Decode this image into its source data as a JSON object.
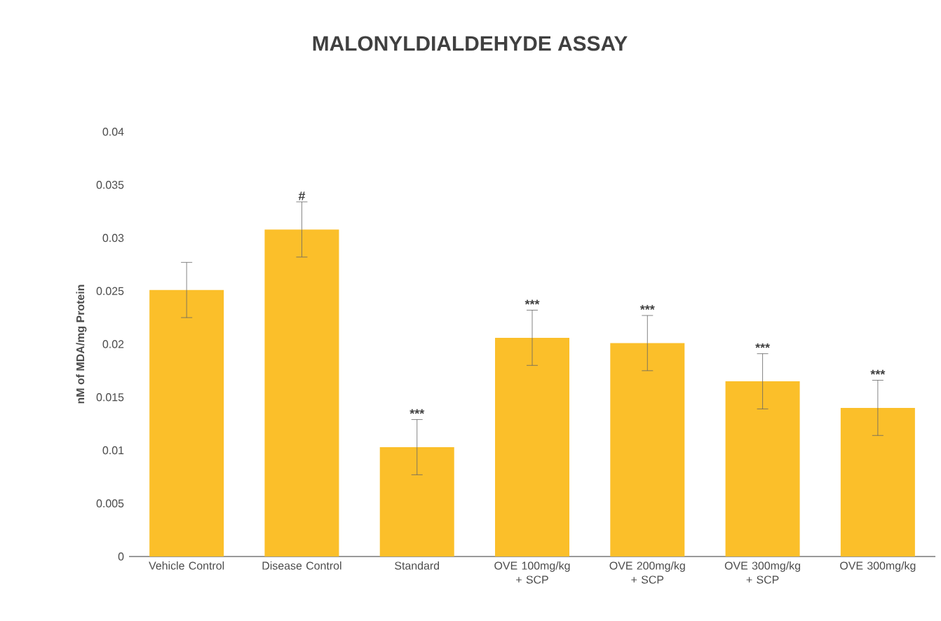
{
  "chart_data": {
    "type": "bar",
    "title": "MALONYLDIALDEHYDE ASSAY",
    "ylabel": "nM of MDA/mg Protein",
    "categories": [
      "Vehicle Control",
      "Disease Control",
      "Standard",
      "OVE 100mg/kg + SCP",
      "OVE 200mg/kg + SCP",
      "OVE 300mg/kg + SCP",
      "OVE 300mg/kg"
    ],
    "values": [
      0.0251,
      0.0308,
      0.0103,
      0.0206,
      0.0201,
      0.0165,
      0.014
    ],
    "errors": [
      0.0026,
      0.0026,
      0.0026,
      0.0026,
      0.0026,
      0.0026,
      0.0026
    ],
    "color": "#fbbf2a",
    "ylim": [
      0,
      0.04
    ],
    "yticks": [
      0,
      0.005,
      0.01,
      0.015,
      0.02,
      0.025,
      0.03,
      0.035,
      0.04
    ],
    "annotations": [
      {
        "text": "#",
        "x": "Disease Control",
        "y": 0.0334
      },
      {
        "text": "***",
        "x": "Standard",
        "y": 0.0129
      },
      {
        "text": "***",
        "x": "OVE 100mg/kg + SCP",
        "y": 0.0232
      },
      {
        "text": "***",
        "x": "OVE 200mg/kg + SCP",
        "y": 0.0227
      },
      {
        "text": "***",
        "x": "OVE 300mg/kg + SCP",
        "y": 0.0191
      },
      {
        "text": "***",
        "x": "OVE 300mg/kg",
        "y": 0.0166
      }
    ]
  }
}
